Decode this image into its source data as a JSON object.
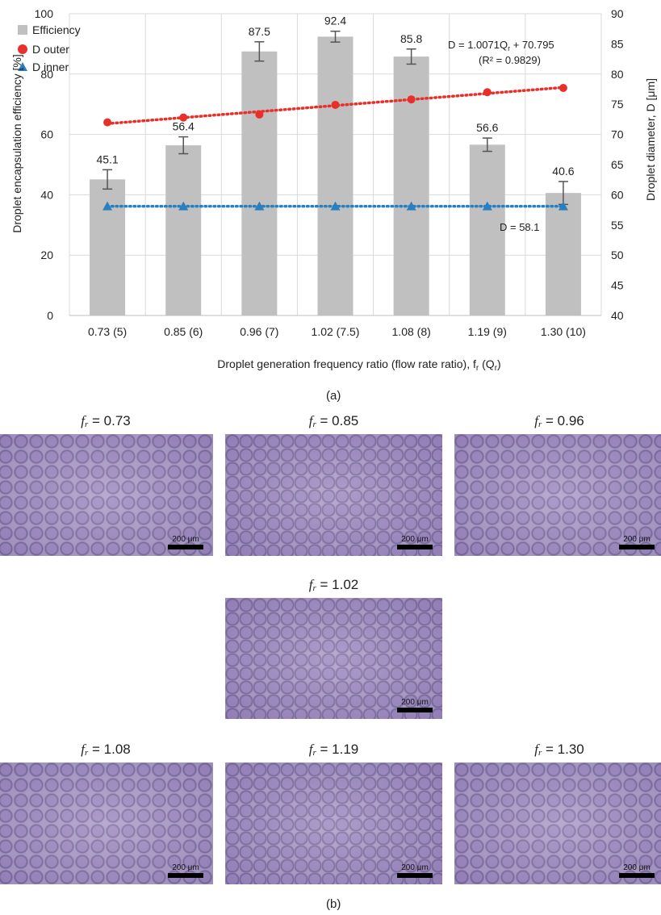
{
  "chart_data": {
    "type": "bar",
    "categories": [
      "0.73 (5)",
      "0.85 (6)",
      "0.96 (7)",
      "1.02 (7.5)",
      "1.08 (8)",
      "1.19 (9)",
      "1.30 (10)"
    ],
    "series": [
      {
        "name": "Efficiency",
        "axis": "left",
        "kind": "bar",
        "color": "#c0c0c0",
        "values": [
          45.1,
          56.4,
          87.5,
          92.4,
          85.8,
          56.6,
          40.6
        ],
        "error": [
          3.2,
          2.8,
          3.2,
          1.8,
          2.5,
          2.2,
          3.8
        ]
      },
      {
        "name": "D outer",
        "axis": "right",
        "kind": "scatter-trend",
        "color": "#e8302a",
        "marker": "circle",
        "values": [
          72.0,
          72.8,
          73.3,
          74.9,
          75.8,
          77.0,
          77.7
        ]
      },
      {
        "name": "D inner",
        "axis": "right",
        "kind": "scatter-trend",
        "color": "#2a7fc1",
        "marker": "triangle",
        "values": [
          58.1,
          58.1,
          58.1,
          58.1,
          58.1,
          58.1,
          58.1
        ]
      }
    ],
    "data_labels": [
      "45.1",
      "56.4",
      "87.5",
      "92.4",
      "85.8",
      "56.6",
      "40.6"
    ],
    "ylim_left": [
      0,
      100
    ],
    "yticks_left": [
      "0",
      "20",
      "40",
      "60",
      "80",
      "100"
    ],
    "ylim_right": [
      40,
      90
    ],
    "yticks_right": [
      "40",
      "45",
      "50",
      "55",
      "60",
      "65",
      "70",
      "75",
      "80",
      "85",
      "90"
    ],
    "ylabel_left": "Droplet encapsulation efficiency [%]",
    "ylabel_right": "Droplet diameter, D [μm]",
    "xlabel": "Droplet generation frequency ratio (flow rate ratio), f",
    "xlabel_sub": "r",
    "xlabel_tail_open": " (Q",
    "xlabel_tail_sub": "r",
    "xlabel_tail_close": ")",
    "annotation_eq": "D = 1.0071Q",
    "annotation_eq_sub": "r",
    "annotation_eq_tail": " + 70.795",
    "annotation_r2": "(R² = 0.9829)",
    "annotation_inner": "D = 58.1",
    "legend_position": "top-left",
    "grid": true
  },
  "panel_a_label": "(a)",
  "panel_b_label": "(b)",
  "micrographs": {
    "f_symbol": "f",
    "f_sub": "r",
    "scale_text": "200 μm",
    "items": [
      {
        "value": "= 0.73"
      },
      {
        "value": "= 0.85"
      },
      {
        "value": "= 0.96"
      },
      {
        "value": "= 1.02"
      },
      {
        "value": "= 1.08"
      },
      {
        "value": "= 1.19"
      },
      {
        "value": "= 1.30"
      }
    ]
  }
}
